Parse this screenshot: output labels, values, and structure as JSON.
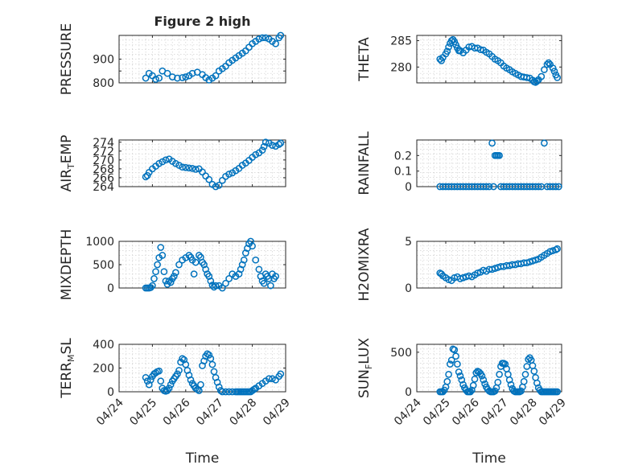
{
  "figure": {
    "title": "Figure 2 high",
    "xlabel": "Time",
    "xtick_labels": [
      "04/24",
      "04/25",
      "04/26",
      "04/27",
      "04/28",
      "04/29"
    ],
    "marker_color": "#0072BD"
  },
  "chart_data": [
    {
      "type": "scatter",
      "ylabel": "PRESSURE",
      "title": "Figure 2 high",
      "xlim": [
        0,
        5
      ],
      "ylim": [
        800,
        1000
      ],
      "yticks": [
        800,
        850,
        900
      ],
      "ytick_labels": [
        "800",
        "",
        "900"
      ],
      "x": [
        0.8,
        0.9,
        1.0,
        1.1,
        1.2,
        1.3,
        1.45,
        1.6,
        1.75,
        1.9,
        2.0,
        2.1,
        2.2,
        2.35,
        2.5,
        2.6,
        2.7,
        2.8,
        2.9,
        3.0,
        3.1,
        3.2,
        3.3,
        3.4,
        3.5,
        3.6,
        3.7,
        3.8,
        3.9,
        4.0,
        4.1,
        4.2,
        4.3,
        4.4,
        4.5,
        4.6,
        4.7,
        4.8,
        4.85
      ],
      "y": [
        820,
        840,
        830,
        815,
        820,
        850,
        840,
        825,
        820,
        822,
        825,
        830,
        840,
        845,
        835,
        822,
        812,
        820,
        830,
        850,
        860,
        870,
        885,
        895,
        905,
        915,
        925,
        935,
        950,
        965,
        975,
        985,
        990,
        990,
        985,
        975,
        965,
        990,
        1000
      ]
    },
    {
      "type": "scatter",
      "ylabel": "THETA",
      "xlim": [
        0,
        5
      ],
      "ylim": [
        277,
        286
      ],
      "yticks": [
        280,
        285
      ],
      "ytick_labels": [
        "280",
        "285"
      ],
      "x": [
        0.8,
        0.85,
        0.9,
        1.0,
        1.05,
        1.1,
        1.15,
        1.2,
        1.25,
        1.3,
        1.35,
        1.4,
        1.45,
        1.5,
        1.6,
        1.7,
        1.8,
        1.9,
        2.0,
        2.1,
        2.2,
        2.3,
        2.4,
        2.5,
        2.6,
        2.7,
        2.8,
        2.9,
        3.0,
        3.1,
        3.2,
        3.3,
        3.4,
        3.5,
        3.6,
        3.7,
        3.8,
        3.9,
        4.0,
        4.05,
        4.1,
        4.15,
        4.2,
        4.3,
        4.4,
        4.5,
        4.55,
        4.6,
        4.7,
        4.75,
        4.8,
        4.85
      ],
      "y": [
        281.5,
        281.2,
        281.8,
        282.5,
        283,
        283.8,
        284.5,
        285,
        285.2,
        284.8,
        284.2,
        283.6,
        283.1,
        283.1,
        282.7,
        283.2,
        283.8,
        283.9,
        283.6,
        283.6,
        283.3,
        283.2,
        282.8,
        282.5,
        282,
        281.5,
        281.2,
        280.8,
        280.2,
        279.8,
        279.5,
        279.1,
        278.8,
        278.5,
        278.2,
        278.1,
        278,
        277.9,
        277.5,
        277.2,
        277.1,
        277.3,
        277.6,
        278.2,
        279.5,
        280.5,
        280.8,
        280.5,
        279.8,
        279.2,
        278.5,
        278
      ]
    },
    {
      "type": "scatter",
      "ylabel": "AIR_TEMP",
      "xlim": [
        0,
        5
      ],
      "ylim": [
        264,
        274.5
      ],
      "yticks": [
        264,
        266,
        268,
        270,
        272,
        274
      ],
      "ytick_labels": [
        "264",
        "266",
        "268",
        "270",
        "272",
        "274"
      ],
      "x": [
        0.8,
        0.85,
        0.9,
        1.0,
        1.1,
        1.2,
        1.3,
        1.4,
        1.5,
        1.6,
        1.7,
        1.8,
        1.9,
        2.0,
        2.1,
        2.2,
        2.3,
        2.4,
        2.5,
        2.6,
        2.7,
        2.8,
        2.9,
        3.0,
        3.1,
        3.2,
        3.3,
        3.4,
        3.5,
        3.6,
        3.7,
        3.8,
        3.9,
        4.0,
        4.1,
        4.2,
        4.3,
        4.35,
        4.4,
        4.5,
        4.6,
        4.7,
        4.8,
        4.85
      ],
      "y": [
        266.2,
        266.5,
        267.2,
        268,
        268.6,
        269.2,
        269.6,
        270,
        270.2,
        269.7,
        269.2,
        268.8,
        268.4,
        268.3,
        268.2,
        268.1,
        267.9,
        268,
        267.3,
        266.4,
        265.6,
        264.5,
        264,
        264.3,
        265.4,
        266.3,
        266.8,
        267.1,
        267.6,
        268.1,
        268.8,
        269.3,
        269.9,
        270.6,
        271.2,
        271.6,
        272.2,
        273,
        274,
        273.8,
        273.3,
        273.1,
        273.5,
        273.8
      ]
    },
    {
      "type": "scatter",
      "ylabel": "RAINFALL",
      "xlim": [
        0,
        5
      ],
      "ylim": [
        0,
        0.3
      ],
      "yticks": [
        0,
        0.1,
        0.2
      ],
      "ytick_labels": [
        "0",
        "0.1",
        "0.2"
      ],
      "x": [
        0.8,
        0.9,
        1.0,
        1.1,
        1.2,
        1.3,
        1.4,
        1.5,
        1.6,
        1.7,
        1.8,
        1.9,
        2.0,
        2.1,
        2.2,
        2.3,
        2.4,
        2.5,
        2.6,
        2.65,
        2.7,
        2.75,
        2.8,
        2.85,
        2.9,
        3.0,
        3.1,
        3.2,
        3.3,
        3.4,
        3.5,
        3.6,
        3.7,
        3.8,
        3.9,
        4.0,
        4.1,
        4.2,
        4.3,
        4.4,
        4.5,
        4.6,
        4.7,
        4.8,
        4.9
      ],
      "y": [
        0,
        0,
        0,
        0,
        0,
        0,
        0,
        0,
        0,
        0,
        0,
        0,
        0,
        0,
        0,
        0,
        0,
        0,
        0.28,
        0,
        0.2,
        0.2,
        0.2,
        0.2,
        0,
        0,
        0,
        0,
        0,
        0,
        0,
        0,
        0,
        0,
        0,
        0,
        0,
        0,
        0,
        0.28,
        0,
        0,
        0,
        0,
        0
      ]
    },
    {
      "type": "scatter",
      "ylabel": "MIXDEPTH",
      "xlim": [
        0,
        5
      ],
      "ylim": [
        0,
        1000
      ],
      "yticks": [
        0,
        500,
        1000
      ],
      "ytick_labels": [
        "0",
        "500",
        "1000"
      ],
      "x": [
        0.8,
        0.85,
        0.9,
        0.95,
        1.0,
        1.05,
        1.1,
        1.15,
        1.2,
        1.25,
        1.3,
        1.35,
        1.4,
        1.45,
        1.5,
        1.55,
        1.6,
        1.65,
        1.7,
        1.8,
        1.9,
        2.0,
        2.1,
        2.15,
        2.2,
        2.25,
        2.3,
        2.4,
        2.45,
        2.5,
        2.55,
        2.6,
        2.65,
        2.7,
        2.75,
        2.8,
        2.85,
        2.9,
        3.0,
        3.1,
        3.2,
        3.3,
        3.4,
        3.5,
        3.6,
        3.65,
        3.7,
        3.75,
        3.8,
        3.85,
        3.9,
        3.95,
        4.0,
        4.1,
        4.2,
        4.25,
        4.3,
        4.35,
        4.4,
        4.45,
        4.5,
        4.55,
        4.6,
        4.65,
        4.7
      ],
      "y": [
        0,
        0,
        0,
        10,
        50,
        200,
        350,
        500,
        650,
        870,
        700,
        350,
        150,
        80,
        150,
        120,
        200,
        250,
        330,
        500,
        600,
        650,
        700,
        660,
        600,
        300,
        550,
        700,
        660,
        550,
        500,
        400,
        300,
        250,
        150,
        60,
        20,
        50,
        50,
        0,
        100,
        200,
        300,
        250,
        300,
        400,
        500,
        600,
        750,
        850,
        950,
        1000,
        900,
        600,
        400,
        250,
        150,
        100,
        300,
        250,
        200,
        50,
        300,
        200,
        250
      ]
    },
    {
      "type": "scatter",
      "ylabel": "H2OMIXRA",
      "xlim": [
        0,
        5
      ],
      "ylim": [
        0,
        5
      ],
      "yticks": [
        0,
        5
      ],
      "ytick_labels": [
        "0",
        "5"
      ],
      "x": [
        0.8,
        0.85,
        0.9,
        1.0,
        1.1,
        1.2,
        1.3,
        1.4,
        1.5,
        1.6,
        1.7,
        1.8,
        1.9,
        2.0,
        2.1,
        2.2,
        2.3,
        2.4,
        2.5,
        2.6,
        2.7,
        2.8,
        2.9,
        3.0,
        3.1,
        3.2,
        3.3,
        3.4,
        3.5,
        3.6,
        3.7,
        3.8,
        3.9,
        4.0,
        4.1,
        4.2,
        4.3,
        4.4,
        4.5,
        4.6,
        4.7,
        4.8,
        4.85
      ],
      "y": [
        1.6,
        1.5,
        1.3,
        1.1,
        0.9,
        0.8,
        1.1,
        1.2,
        1.0,
        1.1,
        1.2,
        1.3,
        1.2,
        1.4,
        1.6,
        1.7,
        1.9,
        1.8,
        2.0,
        2.0,
        2.1,
        2.2,
        2.3,
        2.3,
        2.4,
        2.4,
        2.5,
        2.5,
        2.6,
        2.6,
        2.7,
        2.7,
        2.8,
        2.9,
        3.0,
        3.1,
        3.3,
        3.5,
        3.7,
        3.9,
        4.0,
        4.1,
        4.2
      ]
    },
    {
      "type": "scatter",
      "ylabel": "TERR_MSL",
      "xlim": [
        0,
        5
      ],
      "ylim": [
        0,
        400
      ],
      "yticks": [
        0,
        200,
        400
      ],
      "ytick_labels": [
        "0",
        "200",
        "400"
      ],
      "x": [
        0.8,
        0.85,
        0.9,
        0.95,
        1.0,
        1.05,
        1.1,
        1.15,
        1.2,
        1.25,
        1.3,
        1.35,
        1.4,
        1.45,
        1.5,
        1.55,
        1.6,
        1.65,
        1.7,
        1.75,
        1.8,
        1.85,
        1.9,
        1.95,
        2.0,
        2.05,
        2.1,
        2.15,
        2.2,
        2.25,
        2.3,
        2.35,
        2.4,
        2.45,
        2.5,
        2.55,
        2.6,
        2.65,
        2.7,
        2.75,
        2.8,
        2.85,
        2.9,
        2.95,
        3.0,
        3.05,
        3.1,
        3.2,
        3.3,
        3.4,
        3.5,
        3.55,
        3.6,
        3.65,
        3.7,
        3.75,
        3.8,
        3.85,
        3.9,
        3.95,
        4.0,
        4.05,
        4.1,
        4.2,
        4.3,
        4.4,
        4.5,
        4.6,
        4.7,
        4.8,
        4.85
      ],
      "y": [
        120,
        90,
        60,
        100,
        130,
        150,
        160,
        170,
        175,
        90,
        30,
        10,
        5,
        10,
        30,
        60,
        90,
        110,
        130,
        150,
        180,
        250,
        280,
        270,
        230,
        180,
        140,
        100,
        70,
        50,
        30,
        20,
        10,
        60,
        220,
        260,
        300,
        320,
        310,
        280,
        230,
        170,
        120,
        80,
        40,
        10,
        0,
        0,
        0,
        0,
        0,
        0,
        0,
        0,
        0,
        0,
        0,
        0,
        0,
        0,
        10,
        20,
        30,
        50,
        70,
        90,
        110,
        110,
        100,
        130,
        150
      ]
    },
    {
      "type": "scatter",
      "ylabel": "SUN_FLUX",
      "xlim": [
        0,
        5
      ],
      "ylim": [
        0,
        600
      ],
      "yticks": [
        0,
        500
      ],
      "ytick_labels": [
        "0",
        "500"
      ],
      "x": [
        0.8,
        0.85,
        0.9,
        0.95,
        1.0,
        1.05,
        1.1,
        1.15,
        1.2,
        1.25,
        1.3,
        1.35,
        1.4,
        1.45,
        1.5,
        1.55,
        1.6,
        1.65,
        1.7,
        1.75,
        1.8,
        1.85,
        1.9,
        1.95,
        2.0,
        2.05,
        2.1,
        2.15,
        2.2,
        2.25,
        2.3,
        2.35,
        2.4,
        2.45,
        2.5,
        2.55,
        2.6,
        2.65,
        2.7,
        2.75,
        2.8,
        2.85,
        2.9,
        2.95,
        3.0,
        3.05,
        3.1,
        3.15,
        3.2,
        3.25,
        3.3,
        3.35,
        3.4,
        3.45,
        3.5,
        3.55,
        3.6,
        3.65,
        3.7,
        3.75,
        3.8,
        3.85,
        3.9,
        3.95,
        4.0,
        4.05,
        4.1,
        4.15,
        4.2,
        4.25,
        4.3,
        4.35,
        4.4,
        4.45,
        4.5,
        4.55,
        4.6,
        4.65,
        4.7,
        4.75,
        4.8,
        4.85
      ],
      "y": [
        0,
        0,
        0,
        20,
        60,
        130,
        220,
        350,
        400,
        540,
        530,
        450,
        350,
        250,
        200,
        150,
        90,
        50,
        20,
        0,
        0,
        0,
        20,
        80,
        160,
        240,
        260,
        250,
        230,
        200,
        150,
        100,
        60,
        30,
        10,
        0,
        0,
        0,
        10,
        50,
        120,
        220,
        320,
        360,
        360,
        350,
        290,
        220,
        150,
        90,
        40,
        10,
        0,
        0,
        0,
        0,
        10,
        60,
        130,
        220,
        320,
        410,
        430,
        400,
        330,
        260,
        180,
        110,
        50,
        20,
        0,
        0,
        0,
        0,
        0,
        0,
        0,
        0,
        0,
        0,
        0,
        0
      ]
    }
  ]
}
